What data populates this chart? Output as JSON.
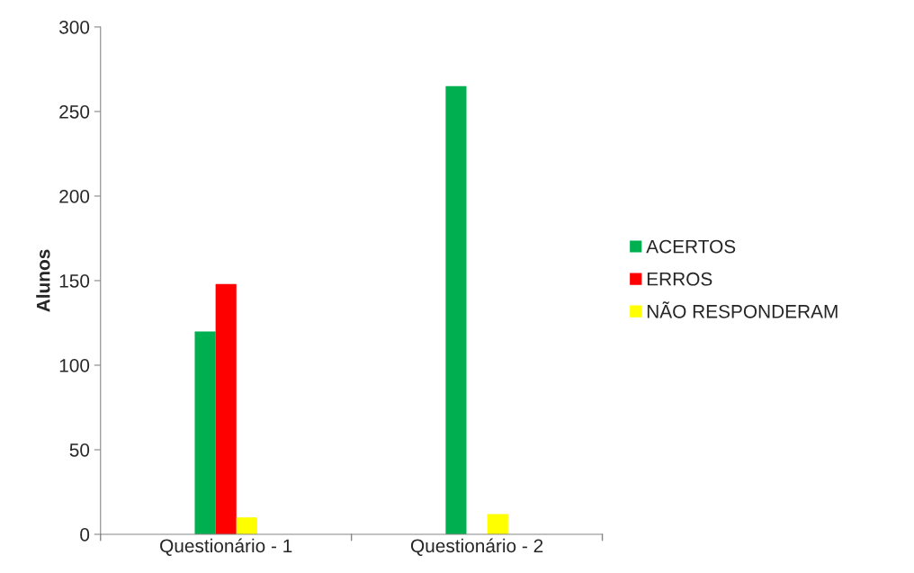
{
  "chart_data": {
    "type": "bar",
    "ylabel": "Alunos",
    "categories": [
      "Questionário - 1",
      "Questionário - 2"
    ],
    "series": [
      {
        "name": "ACERTOS",
        "color": "#00b050",
        "values": [
          120,
          265
        ]
      },
      {
        "name": "ERROS",
        "color": "#ff0000",
        "values": [
          148,
          null
        ]
      },
      {
        "name": "NÃO RESPONDERAM",
        "color": "#ffff00",
        "values": [
          10,
          12
        ]
      }
    ],
    "ylim": [
      0,
      300
    ],
    "yticks": [
      0,
      50,
      100,
      150,
      200,
      250,
      300
    ],
    "grid": false,
    "legend": "right"
  }
}
